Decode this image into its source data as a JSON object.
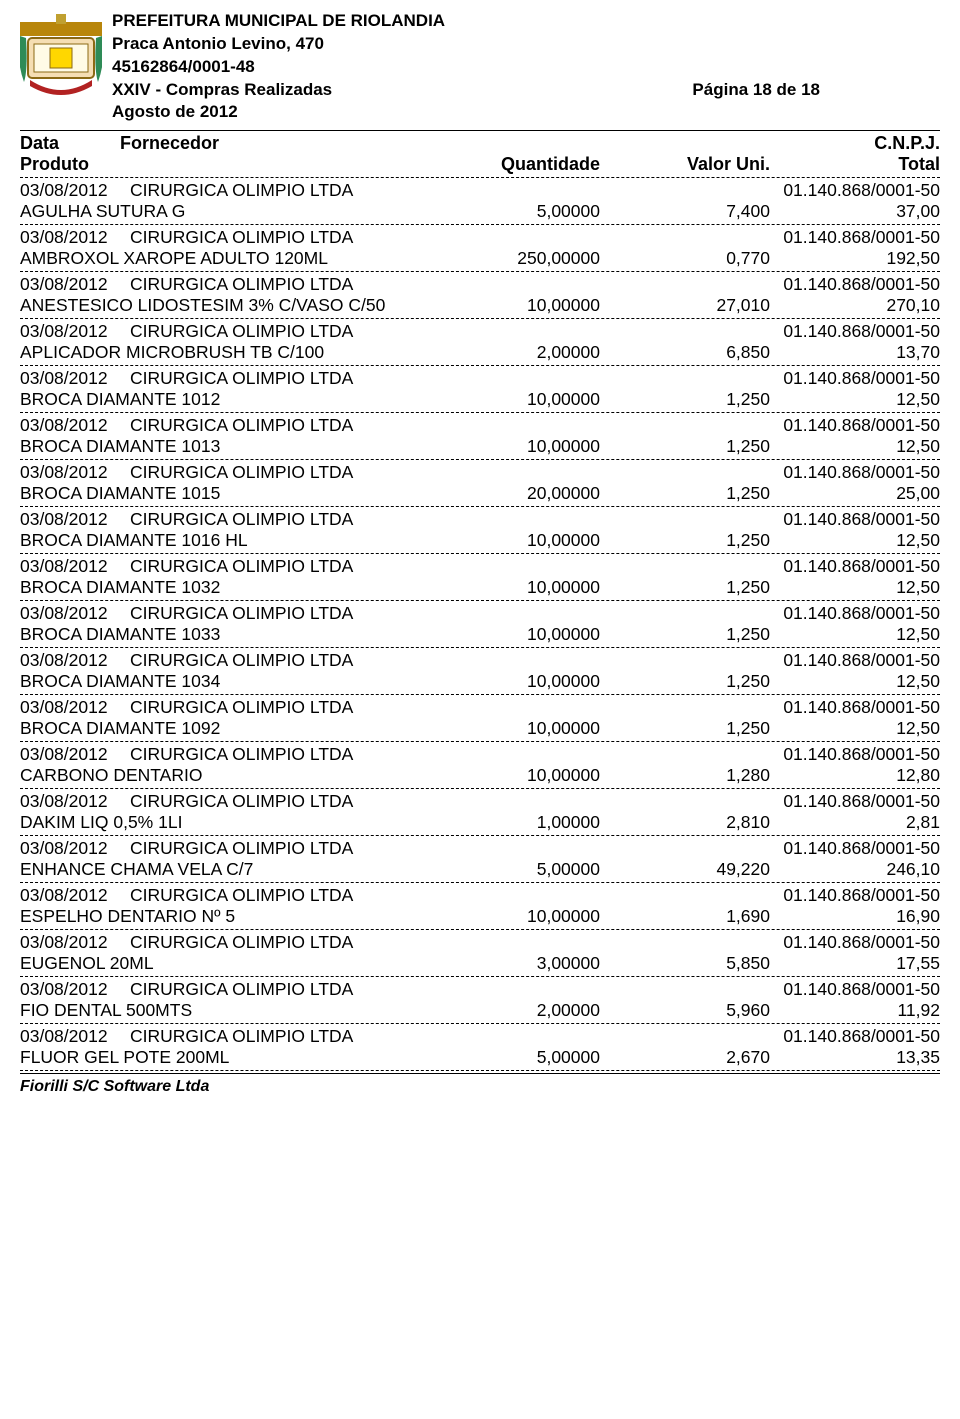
{
  "header": {
    "org": "PREFEITURA MUNICIPAL DE RIOLANDIA",
    "address": "Praca Antonio Levino, 470",
    "cnpj": "45162864/0001-48",
    "report_title": "XXIV - Compras Realizadas",
    "page_info": "Página 18 de 18",
    "month": "Agosto de 2012"
  },
  "columns": {
    "data": "Data",
    "fornecedor": "Fornecedor",
    "cnpj": "C.N.P.J.",
    "produto": "Produto",
    "quantidade": "Quantidade",
    "valor_uni": "Valor Uni.",
    "total": "Total"
  },
  "entries": [
    {
      "date": "03/08/2012",
      "supplier": "CIRURGICA OLIMPIO LTDA",
      "cnpj": "01.140.868/0001-50",
      "product": "AGULHA SUTURA G",
      "qty": "5,00000",
      "uni": "7,400",
      "total": "37,00"
    },
    {
      "date": "03/08/2012",
      "supplier": "CIRURGICA OLIMPIO LTDA",
      "cnpj": "01.140.868/0001-50",
      "product": "AMBROXOL XAROPE ADULTO 120ML",
      "qty": "250,00000",
      "uni": "0,770",
      "total": "192,50"
    },
    {
      "date": "03/08/2012",
      "supplier": "CIRURGICA OLIMPIO LTDA",
      "cnpj": "01.140.868/0001-50",
      "product": "ANESTESICO LIDOSTESIM 3% C/VASO C/50",
      "qty": "10,00000",
      "uni": "27,010",
      "total": "270,10"
    },
    {
      "date": "03/08/2012",
      "supplier": "CIRURGICA OLIMPIO LTDA",
      "cnpj": "01.140.868/0001-50",
      "product": "APLICADOR MICROBRUSH TB C/100",
      "qty": "2,00000",
      "uni": "6,850",
      "total": "13,70"
    },
    {
      "date": "03/08/2012",
      "supplier": "CIRURGICA OLIMPIO LTDA",
      "cnpj": "01.140.868/0001-50",
      "product": "BROCA DIAMANTE 1012",
      "qty": "10,00000",
      "uni": "1,250",
      "total": "12,50"
    },
    {
      "date": "03/08/2012",
      "supplier": "CIRURGICA OLIMPIO LTDA",
      "cnpj": "01.140.868/0001-50",
      "product": "BROCA DIAMANTE 1013",
      "qty": "10,00000",
      "uni": "1,250",
      "total": "12,50"
    },
    {
      "date": "03/08/2012",
      "supplier": "CIRURGICA OLIMPIO LTDA",
      "cnpj": "01.140.868/0001-50",
      "product": "BROCA DIAMANTE 1015",
      "qty": "20,00000",
      "uni": "1,250",
      "total": "25,00"
    },
    {
      "date": "03/08/2012",
      "supplier": "CIRURGICA OLIMPIO LTDA",
      "cnpj": "01.140.868/0001-50",
      "product": "BROCA DIAMANTE 1016 HL",
      "qty": "10,00000",
      "uni": "1,250",
      "total": "12,50"
    },
    {
      "date": "03/08/2012",
      "supplier": "CIRURGICA OLIMPIO LTDA",
      "cnpj": "01.140.868/0001-50",
      "product": "BROCA DIAMANTE 1032",
      "qty": "10,00000",
      "uni": "1,250",
      "total": "12,50"
    },
    {
      "date": "03/08/2012",
      "supplier": "CIRURGICA OLIMPIO LTDA",
      "cnpj": "01.140.868/0001-50",
      "product": "BROCA DIAMANTE 1033",
      "qty": "10,00000",
      "uni": "1,250",
      "total": "12,50"
    },
    {
      "date": "03/08/2012",
      "supplier": "CIRURGICA OLIMPIO LTDA",
      "cnpj": "01.140.868/0001-50",
      "product": "BROCA DIAMANTE 1034",
      "qty": "10,00000",
      "uni": "1,250",
      "total": "12,50"
    },
    {
      "date": "03/08/2012",
      "supplier": "CIRURGICA OLIMPIO LTDA",
      "cnpj": "01.140.868/0001-50",
      "product": "BROCA DIAMANTE 1092",
      "qty": "10,00000",
      "uni": "1,250",
      "total": "12,50"
    },
    {
      "date": "03/08/2012",
      "supplier": "CIRURGICA OLIMPIO LTDA",
      "cnpj": "01.140.868/0001-50",
      "product": "CARBONO DENTARIO",
      "qty": "10,00000",
      "uni": "1,280",
      "total": "12,80"
    },
    {
      "date": "03/08/2012",
      "supplier": "CIRURGICA OLIMPIO LTDA",
      "cnpj": "01.140.868/0001-50",
      "product": "DAKIM LIQ 0,5% 1LI",
      "qty": "1,00000",
      "uni": "2,810",
      "total": "2,81"
    },
    {
      "date": "03/08/2012",
      "supplier": "CIRURGICA OLIMPIO LTDA",
      "cnpj": "01.140.868/0001-50",
      "product": "ENHANCE CHAMA VELA C/7",
      "qty": "5,00000",
      "uni": "49,220",
      "total": "246,10"
    },
    {
      "date": "03/08/2012",
      "supplier": "CIRURGICA OLIMPIO LTDA",
      "cnpj": "01.140.868/0001-50",
      "product": "ESPELHO DENTARIO Nº 5",
      "qty": "10,00000",
      "uni": "1,690",
      "total": "16,90"
    },
    {
      "date": "03/08/2012",
      "supplier": "CIRURGICA OLIMPIO LTDA",
      "cnpj": "01.140.868/0001-50",
      "product": "EUGENOL 20ML",
      "qty": "3,00000",
      "uni": "5,850",
      "total": "17,55"
    },
    {
      "date": "03/08/2012",
      "supplier": "CIRURGICA OLIMPIO LTDA",
      "cnpj": "01.140.868/0001-50",
      "product": "FIO DENTAL 500MTS",
      "qty": "2,00000",
      "uni": "5,960",
      "total": "11,92"
    },
    {
      "date": "03/08/2012",
      "supplier": "CIRURGICA OLIMPIO LTDA",
      "cnpj": "01.140.868/0001-50",
      "product": "FLUOR GEL POTE 200ML",
      "qty": "5,00000",
      "uni": "2,670",
      "total": "13,35"
    }
  ],
  "footer": "Fiorilli S/C Software Ltda"
}
